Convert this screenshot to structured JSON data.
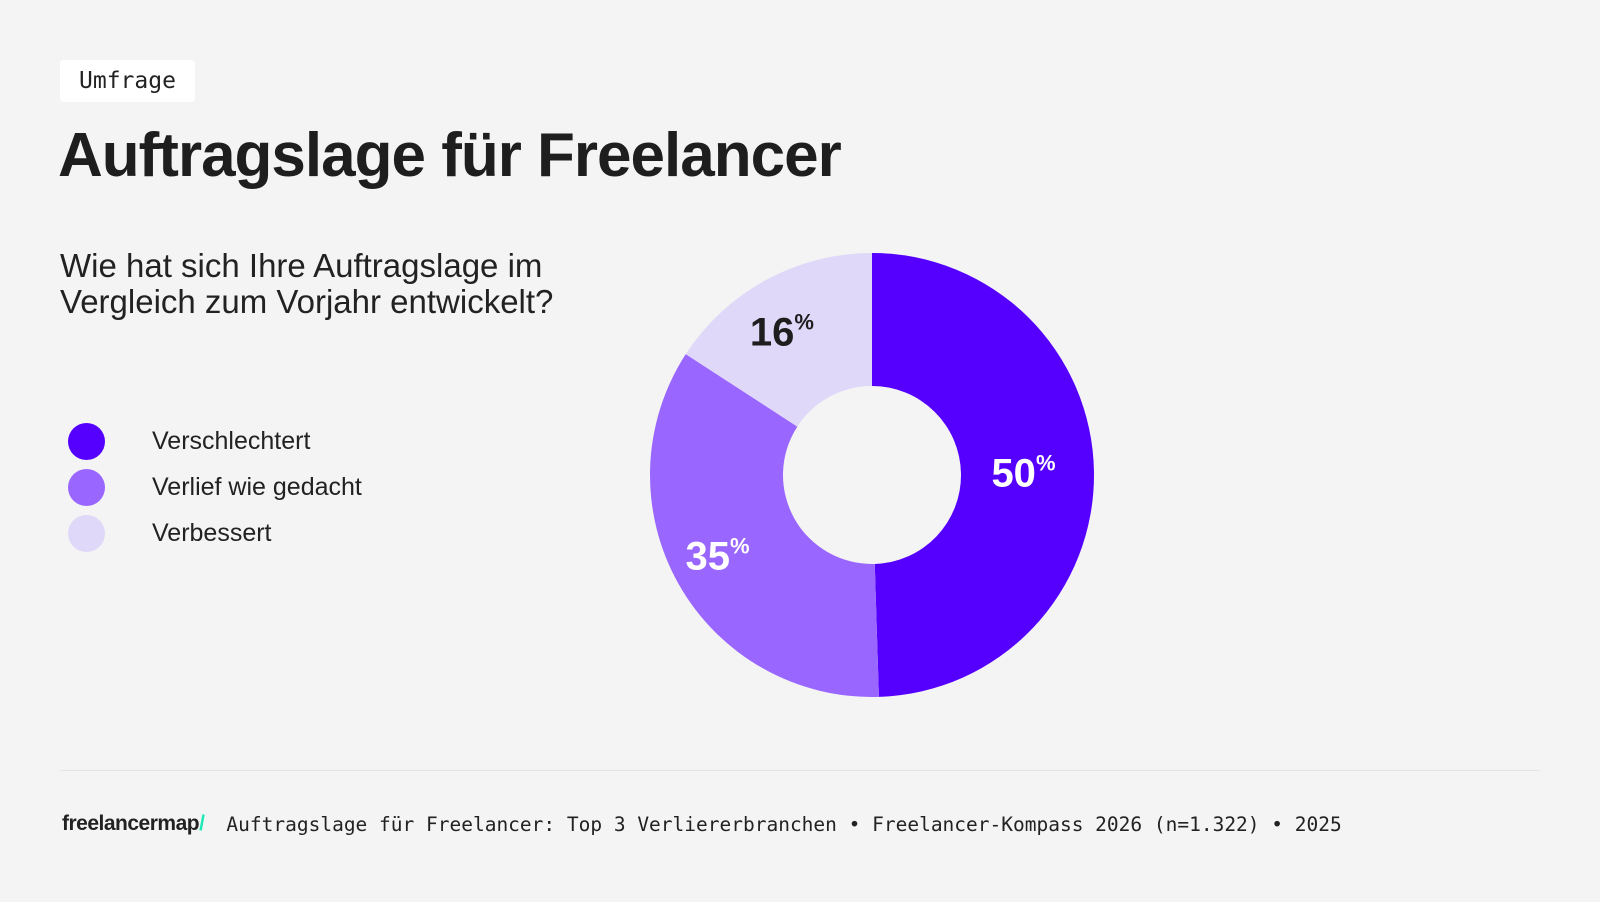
{
  "tag": "Umfrage",
  "title": "Auftragslage für Freelancer",
  "chart_data": {
    "type": "pie",
    "variant": "donut",
    "title": "Auftragslage für Freelancer",
    "subtitle": "Wie hat sich Ihre Auftragslage im Vergleich zum Vorjahr entwickelt?",
    "categories": [
      "Verschlechtert",
      "Verlief wie gedacht",
      "Verbessert"
    ],
    "values": [
      50,
      35,
      16
    ],
    "labels": [
      "50",
      "35",
      "16"
    ],
    "unit": "%",
    "colors": [
      "#5500ff",
      "#9966ff",
      "#e0d8f8"
    ],
    "label_colors": [
      "#ffffff",
      "#ffffff",
      "#1e1e1e"
    ],
    "legend_position": "left"
  },
  "footer": {
    "logo": "freelancermap",
    "logo_slash": "/",
    "source": "Auftragslage für Freelancer: Top 3 Verliererbranchen • Freelancer-Kompass 2026 (n=1.322) • 2025"
  }
}
